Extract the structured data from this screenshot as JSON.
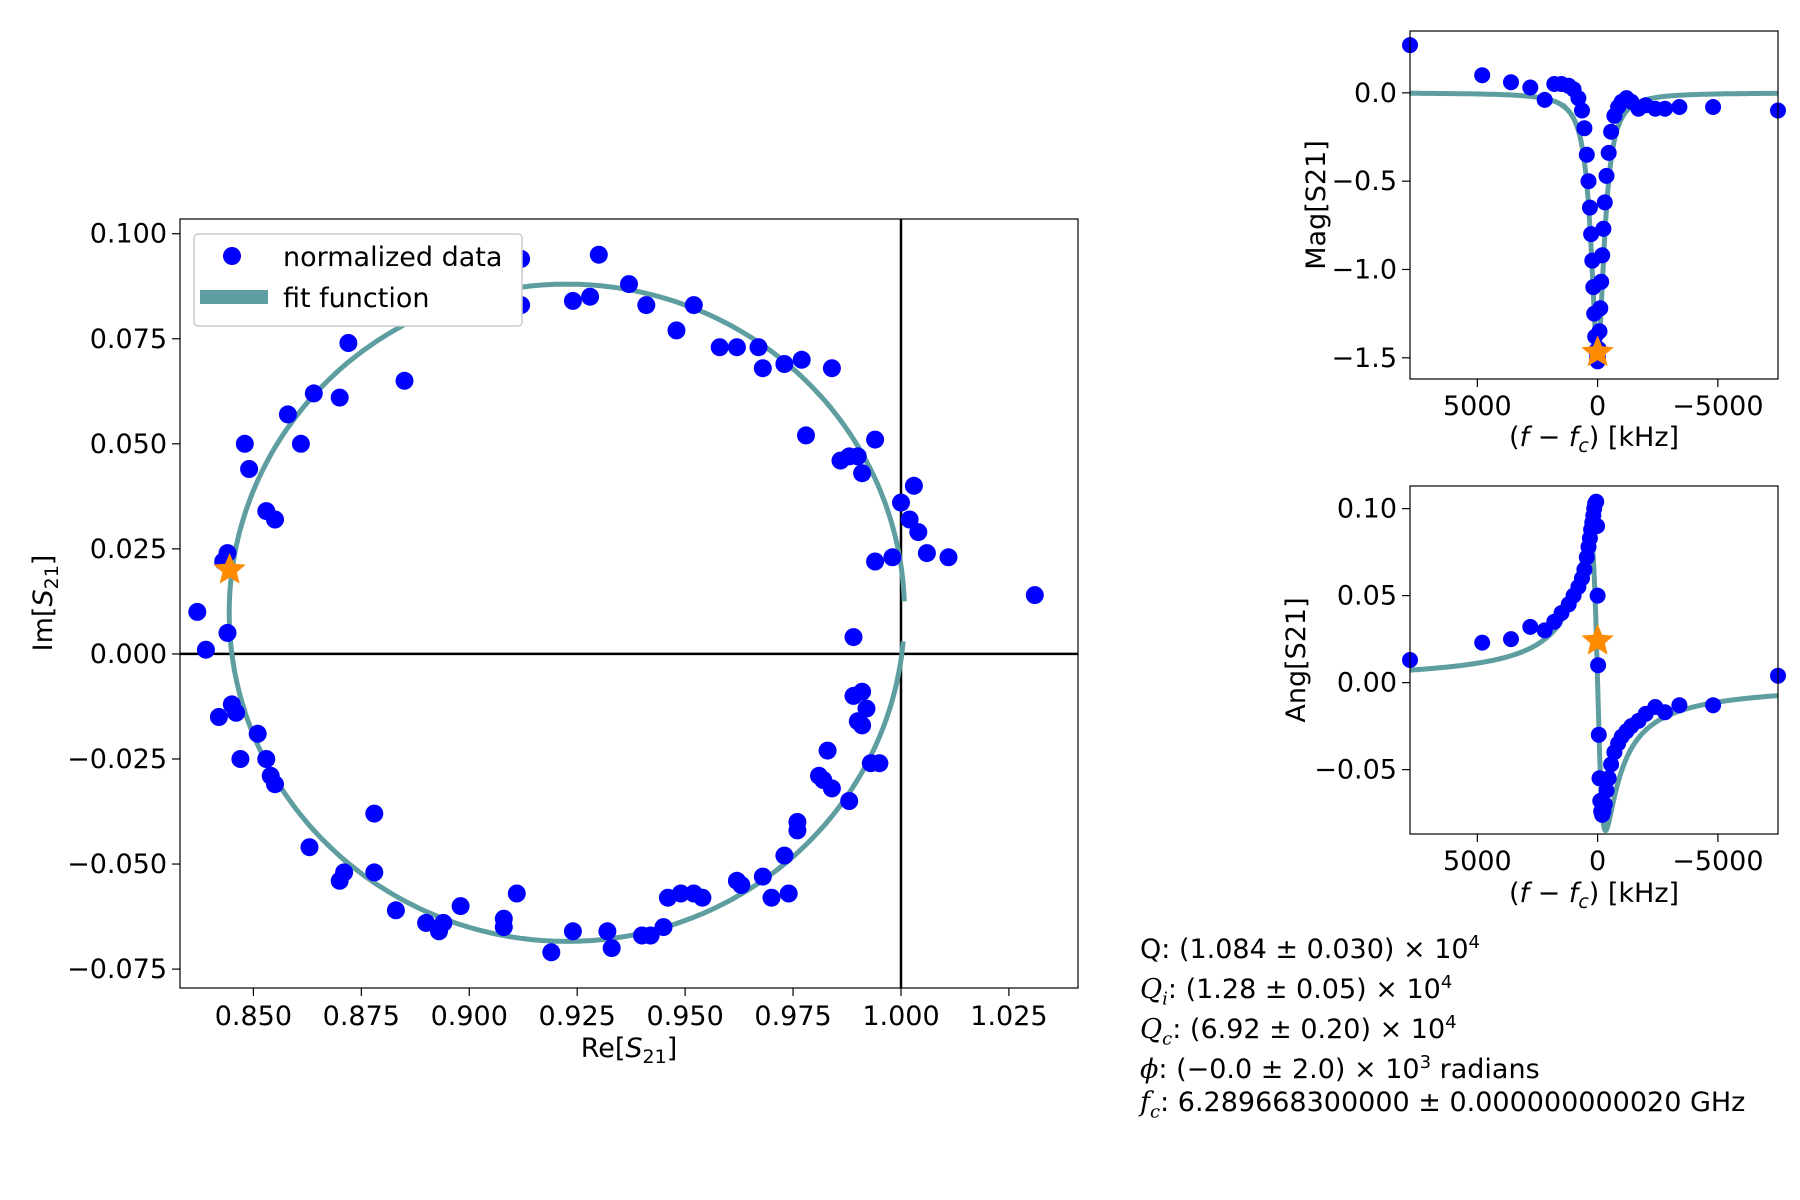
{
  "colors": {
    "data": "#0000ff",
    "fit": "#5f9ea0",
    "star": "#ff8c00",
    "zero_line": "#000000"
  },
  "chart_data": [
    {
      "type": "scatter",
      "title": "",
      "xlabel": "Re[S21]",
      "ylabel": "Im[S21]",
      "xlim": [
        0.833,
        1.041
      ],
      "ylim": [
        -0.0795,
        0.1035
      ],
      "xticks": [
        "0.850",
        "0.875",
        "0.900",
        "0.925",
        "0.950",
        "0.975",
        "1.000",
        "1.025"
      ],
      "yticks": [
        "−0.075",
        "−0.050",
        "−0.025",
        "0.000",
        "0.025",
        "0.050",
        "0.075",
        "0.100"
      ],
      "grid": false,
      "legend": {
        "position": "top-left",
        "entries": [
          "normalized data",
          "fit function"
        ]
      },
      "series": [
        {
          "name": "normalized data",
          "kind": "points",
          "points": [
            [
              0.837,
              0.01
            ],
            [
              0.839,
              0.001
            ],
            [
              0.842,
              -0.015
            ],
            [
              0.843,
              0.022
            ],
            [
              0.844,
              0.024
            ],
            [
              0.844,
              0.005
            ],
            [
              0.845,
              -0.012
            ],
            [
              0.846,
              -0.014
            ],
            [
              0.847,
              -0.025
            ],
            [
              0.848,
              0.05
            ],
            [
              0.849,
              0.044
            ],
            [
              0.851,
              -0.019
            ],
            [
              0.853,
              -0.025
            ],
            [
              0.853,
              0.034
            ],
            [
              0.854,
              -0.029
            ],
            [
              0.855,
              0.032
            ],
            [
              0.855,
              -0.031
            ],
            [
              0.858,
              0.057
            ],
            [
              0.861,
              0.05
            ],
            [
              0.863,
              -0.046
            ],
            [
              0.864,
              0.062
            ],
            [
              0.87,
              -0.054
            ],
            [
              0.87,
              0.061
            ],
            [
              0.871,
              -0.052
            ],
            [
              0.872,
              0.074
            ],
            [
              0.878,
              -0.038
            ],
            [
              0.878,
              -0.052
            ],
            [
              0.883,
              -0.061
            ],
            [
              0.885,
              0.065
            ],
            [
              0.89,
              -0.064
            ],
            [
              0.893,
              -0.066
            ],
            [
              0.894,
              -0.064
            ],
            [
              0.898,
              -0.06
            ],
            [
              0.908,
              -0.063
            ],
            [
              0.908,
              -0.065
            ],
            [
              0.911,
              -0.057
            ],
            [
              0.912,
              0.083
            ],
            [
              0.912,
              0.094
            ],
            [
              0.919,
              -0.071
            ],
            [
              0.924,
              0.084
            ],
            [
              0.924,
              -0.066
            ],
            [
              0.928,
              0.085
            ],
            [
              0.93,
              0.095
            ],
            [
              0.932,
              -0.066
            ],
            [
              0.933,
              -0.07
            ],
            [
              0.937,
              0.088
            ],
            [
              0.94,
              -0.067
            ],
            [
              0.941,
              0.083
            ],
            [
              0.942,
              -0.067
            ],
            [
              0.945,
              -0.065
            ],
            [
              0.946,
              -0.058
            ],
            [
              0.948,
              0.077
            ],
            [
              0.949,
              -0.057
            ],
            [
              0.952,
              0.083
            ],
            [
              0.952,
              -0.057
            ],
            [
              0.954,
              -0.058
            ],
            [
              0.958,
              0.073
            ],
            [
              0.962,
              0.073
            ],
            [
              0.962,
              -0.054
            ],
            [
              0.963,
              -0.055
            ],
            [
              0.967,
              0.073
            ],
            [
              0.968,
              -0.053
            ],
            [
              0.968,
              0.068
            ],
            [
              0.97,
              -0.058
            ],
            [
              0.973,
              0.069
            ],
            [
              0.973,
              -0.048
            ],
            [
              0.974,
              -0.057
            ],
            [
              0.976,
              -0.04
            ],
            [
              0.976,
              -0.042
            ],
            [
              0.977,
              0.07
            ],
            [
              0.978,
              0.052
            ],
            [
              0.981,
              -0.029
            ],
            [
              0.982,
              -0.03
            ],
            [
              0.983,
              -0.023
            ],
            [
              0.984,
              -0.032
            ],
            [
              0.984,
              0.068
            ],
            [
              0.986,
              0.046
            ],
            [
              0.988,
              0.047
            ],
            [
              0.988,
              -0.035
            ],
            [
              0.989,
              -0.01
            ],
            [
              0.989,
              0.004
            ],
            [
              0.99,
              -0.016
            ],
            [
              0.99,
              0.047
            ],
            [
              0.991,
              -0.009
            ],
            [
              0.991,
              -0.017
            ],
            [
              0.991,
              0.043
            ],
            [
              0.992,
              -0.013
            ],
            [
              0.993,
              -0.026
            ],
            [
              0.994,
              0.051
            ],
            [
              0.994,
              0.022
            ],
            [
              0.995,
              -0.026
            ],
            [
              0.998,
              0.023
            ],
            [
              1.0,
              0.036
            ],
            [
              1.002,
              0.032
            ],
            [
              1.003,
              0.04
            ],
            [
              1.004,
              0.029
            ],
            [
              1.006,
              0.024
            ],
            [
              1.011,
              0.023
            ],
            [
              1.031,
              0.014
            ]
          ]
        },
        {
          "name": "fit function",
          "kind": "circle",
          "center": [
            0.9226,
            0.0098
          ],
          "radius": 0.0782,
          "gap_from_angle_deg": -5,
          "gap_to_angle_deg": 2
        },
        {
          "name": "",
          "kind": "marker",
          "marker": "star",
          "points": [
            [
              0.8445,
              0.02
            ]
          ]
        }
      ],
      "reference_lines": {
        "x": 1.0,
        "y": 0.0
      }
    },
    {
      "type": "line",
      "title": "",
      "xlabel": "(f − fc) [kHz]",
      "ylabel": "Mag[S21]",
      "xlim": [
        7800,
        -7500
      ],
      "ylim": [
        -1.62,
        0.35
      ],
      "xaxis_inverted": true,
      "xticks": [
        "5000",
        "0",
        "−5000"
      ],
      "yticks": [
        "0.0",
        "−0.5",
        "−1.0",
        "−1.5"
      ],
      "grid": false,
      "series": [
        {
          "name": "",
          "kind": "points",
          "points": [
            [
              7800,
              0.27
            ],
            [
              4800,
              0.1
            ],
            [
              3600,
              0.06
            ],
            [
              2800,
              0.03
            ],
            [
              2200,
              -0.04
            ],
            [
              1800,
              0.05
            ],
            [
              1500,
              0.05
            ],
            [
              1200,
              0.04
            ],
            [
              1000,
              0.02
            ],
            [
              800,
              -0.03
            ],
            [
              650,
              -0.1
            ],
            [
              550,
              -0.2
            ],
            [
              450,
              -0.35
            ],
            [
              380,
              -0.5
            ],
            [
              320,
              -0.65
            ],
            [
              270,
              -0.8
            ],
            [
              220,
              -0.95
            ],
            [
              180,
              -1.1
            ],
            [
              140,
              -1.25
            ],
            [
              100,
              -1.38
            ],
            [
              60,
              -1.46
            ],
            [
              20,
              -1.5
            ],
            [
              0,
              -1.52
            ],
            [
              -20,
              -1.5
            ],
            [
              -50,
              -1.45
            ],
            [
              -80,
              -1.35
            ],
            [
              -110,
              -1.22
            ],
            [
              -150,
              -1.07
            ],
            [
              -190,
              -0.92
            ],
            [
              -240,
              -0.77
            ],
            [
              -300,
              -0.62
            ],
            [
              -370,
              -0.47
            ],
            [
              -460,
              -0.34
            ],
            [
              -560,
              -0.22
            ],
            [
              -700,
              -0.13
            ],
            [
              -850,
              -0.08
            ],
            [
              -1000,
              -0.05
            ],
            [
              -1200,
              -0.03
            ],
            [
              -1400,
              -0.05
            ],
            [
              -1700,
              -0.09
            ],
            [
              -2000,
              -0.07
            ],
            [
              -2400,
              -0.09
            ],
            [
              -2800,
              -0.09
            ],
            [
              -3400,
              -0.08
            ],
            [
              -4800,
              -0.08
            ],
            [
              -7500,
              -0.1
            ]
          ]
        },
        {
          "name": "",
          "kind": "model",
          "model": "lorentzian-dip",
          "depth": 1.47,
          "half_width_khz": 330,
          "x_from": 7800,
          "x_to": -7500
        },
        {
          "name": "",
          "kind": "marker",
          "marker": "star",
          "points": [
            [
              0,
              -1.47
            ]
          ]
        }
      ]
    },
    {
      "type": "line",
      "title": "",
      "xlabel": "(f − fc) [kHz]",
      "ylabel": "Ang[S21]",
      "xlim": [
        7800,
        -7500
      ],
      "ylim": [
        -0.087,
        0.113
      ],
      "xaxis_inverted": true,
      "xticks": [
        "5000",
        "0",
        "−5000"
      ],
      "yticks": [
        "0.10",
        "0.05",
        "0.00",
        "−0.05"
      ],
      "grid": false,
      "series": [
        {
          "name": "",
          "kind": "points",
          "points": [
            [
              7800,
              0.013
            ],
            [
              4800,
              0.023
            ],
            [
              3600,
              0.025
            ],
            [
              2800,
              0.032
            ],
            [
              2200,
              0.03
            ],
            [
              1800,
              0.035
            ],
            [
              1500,
              0.04
            ],
            [
              1200,
              0.045
            ],
            [
              1000,
              0.05
            ],
            [
              800,
              0.055
            ],
            [
              650,
              0.06
            ],
            [
              550,
              0.065
            ],
            [
              450,
              0.072
            ],
            [
              380,
              0.078
            ],
            [
              320,
              0.083
            ],
            [
              270,
              0.088
            ],
            [
              220,
              0.092
            ],
            [
              180,
              0.096
            ],
            [
              140,
              0.1
            ],
            [
              100,
              0.103
            ],
            [
              60,
              0.104
            ],
            [
              20,
              0.09
            ],
            [
              0,
              0.05
            ],
            [
              -20,
              0.01
            ],
            [
              -50,
              -0.03
            ],
            [
              -80,
              -0.055
            ],
            [
              -110,
              -0.068
            ],
            [
              -150,
              -0.074
            ],
            [
              -190,
              -0.076
            ],
            [
              -240,
              -0.074
            ],
            [
              -300,
              -0.07
            ],
            [
              -370,
              -0.062
            ],
            [
              -460,
              -0.055
            ],
            [
              -560,
              -0.047
            ],
            [
              -700,
              -0.04
            ],
            [
              -850,
              -0.035
            ],
            [
              -1000,
              -0.031
            ],
            [
              -1200,
              -0.028
            ],
            [
              -1400,
              -0.025
            ],
            [
              -1700,
              -0.022
            ],
            [
              -2000,
              -0.018
            ],
            [
              -2400,
              -0.014
            ],
            [
              -2800,
              -0.017
            ],
            [
              -3400,
              -0.013
            ],
            [
              -4800,
              -0.013
            ],
            [
              -7500,
              0.004
            ]
          ]
        },
        {
          "name": "",
          "kind": "model",
          "model": "dispersive",
          "amplitude": 0.085,
          "half_width_khz": 330,
          "x_from": 7800,
          "x_to": -7500
        },
        {
          "name": "",
          "kind": "marker",
          "marker": "star",
          "points": [
            [
              0,
              0.024
            ]
          ]
        }
      ]
    }
  ],
  "fit_results": {
    "q": {
      "label": "Q",
      "value": "(1.084 ± 0.030) × 10",
      "exp": "4",
      "unit": ""
    },
    "qi": {
      "label": "Q",
      "sub": "i",
      "value": "(1.28 ± 0.05) × 10",
      "exp": "4",
      "unit": ""
    },
    "qc": {
      "label": "Q",
      "sub": "c",
      "value": "(6.92 ± 0.20) × 10",
      "exp": "4",
      "unit": ""
    },
    "phi": {
      "label": "ϕ",
      "value": "(−0.0 ± 2.0) × 10",
      "exp": "3",
      "unit": " radians"
    },
    "fc": {
      "label": "f",
      "sub": "c",
      "value": "6.289668300000 ± 0.000000000020 GHz"
    }
  }
}
